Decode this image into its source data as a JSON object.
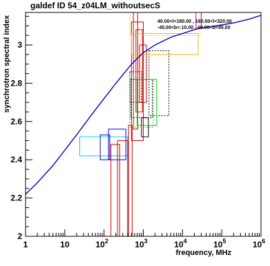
{
  "chart_data": {
    "type": "line",
    "title": "galdef ID 54_z04LM_withoutsecS",
    "xlabel": "frequency, MHz",
    "ylabel": "synchrotron spectral index",
    "xscale": "log",
    "xlim": [
      1,
      1000000
    ],
    "ylim": [
      2.0,
      3.17
    ],
    "x_ticks": [
      {
        "v": 1,
        "label": "1"
      },
      {
        "v": 10,
        "label": "10"
      },
      {
        "v": 100,
        "label": "10",
        "sup": "2"
      },
      {
        "v": 1000,
        "label": "10",
        "sup": "3"
      },
      {
        "v": 10000,
        "label": "10",
        "sup": "4"
      },
      {
        "v": 100000,
        "label": "10",
        "sup": "5"
      },
      {
        "v": 1000000,
        "label": "10",
        "sup": "6"
      }
    ],
    "y_ticks": [
      {
        "v": 2.0,
        "label": "2"
      },
      {
        "v": 2.2,
        "label": "2.2"
      },
      {
        "v": 2.4,
        "label": "2.4"
      },
      {
        "v": 2.6,
        "label": "2.6"
      },
      {
        "v": 2.8,
        "label": "2.8"
      },
      {
        "v": 3.0,
        "label": "3"
      }
    ],
    "legend": {
      "position": "top-right",
      "lines": [
        "40.00<l<180.00 , 180.00<l<320.00",
        "-45.00<b<-10.00 , 10.00<b<45.00"
      ]
    },
    "series": [
      {
        "color": "#0000cc",
        "x": [
          1,
          2,
          5,
          10,
          20,
          50,
          100,
          200,
          500,
          1000,
          2000,
          5000,
          10000,
          20000,
          30000,
          50000,
          100000,
          200000,
          500000,
          1000000
        ],
        "y": [
          2.22,
          2.28,
          2.37,
          2.45,
          2.53,
          2.64,
          2.72,
          2.8,
          2.9,
          2.96,
          3.0,
          3.04,
          3.06,
          3.08,
          3.09,
          3.095,
          3.105,
          3.115,
          3.135,
          3.155
        ]
      }
    ],
    "boxes": [
      {
        "x": [
          24,
          400
        ],
        "y": [
          2.42,
          2.52
        ],
        "color": "#00ccff",
        "dash": false
      },
      {
        "x": [
          80,
          140
        ],
        "y": [
          2.4,
          2.53
        ],
        "color": "#0000cc",
        "dash": false
      },
      {
        "x": [
          130,
          360
        ],
        "y": [
          2.4,
          2.56
        ],
        "color": "#0000cc",
        "dash": false
      },
      {
        "x": [
          150,
          250
        ],
        "y": [
          1.96,
          2.48
        ],
        "color": "#cc0000",
        "dash": false
      },
      {
        "x": [
          220,
          400
        ],
        "y": [
          1.96,
          2.5
        ],
        "color": "#cc0000",
        "dash": false
      },
      {
        "x": [
          420,
          520
        ],
        "y": [
          1.96,
          2.58
        ],
        "color": "#cc0000",
        "dash": false
      },
      {
        "x": [
          500,
          1000
        ],
        "y": [
          2.5,
          3.12
        ],
        "color": "#cc0000",
        "dash": false
      },
      {
        "x": [
          560,
          720
        ],
        "y": [
          2.56,
          3.17
        ],
        "color": "#cc0000",
        "dash": false
      },
      {
        "x": [
          650,
          950
        ],
        "y": [
          2.65,
          3.08
        ],
        "color": "#cc0000",
        "dash": false
      },
      {
        "x": [
          800,
          1200
        ],
        "y": [
          2.7,
          3.0
        ],
        "color": "#cc0000",
        "dash": false
      },
      {
        "x": [
          900,
          1350
        ],
        "y": [
          2.52,
          2.62
        ],
        "color": "#000000",
        "dash": false
      },
      {
        "x": [
          450,
          900
        ],
        "y": [
          2.7,
          2.86
        ],
        "color": "#000000",
        "dash": true
      },
      {
        "x": [
          480,
          1700
        ],
        "y": [
          2.62,
          2.82
        ],
        "color": "#000000",
        "dash": true
      },
      {
        "x": [
          1400,
          4500
        ],
        "y": [
          2.63,
          2.97
        ],
        "color": "#000000",
        "dash": true
      },
      {
        "x": [
          450,
          1800
        ],
        "y": [
          2.57,
          2.82
        ],
        "color": "#00cc00",
        "dash": true
      },
      {
        "x": [
          700,
          2200
        ],
        "y": [
          2.58,
          2.82
        ],
        "color": "#00cc00",
        "dash": false
      },
      {
        "x": [
          500,
          25000
        ],
        "y": [
          2.95,
          3.06
        ],
        "color": "#e6b800",
        "dash": false
      },
      {
        "x": [
          460,
          28000
        ],
        "y": [
          3.05,
          3.17
        ],
        "color": "#e6b800",
        "dash": true
      },
      {
        "x": [
          22000,
          30000
        ],
        "y": [
          3.09,
          3.17
        ],
        "color": "#cc00cc",
        "dash": false
      }
    ]
  }
}
